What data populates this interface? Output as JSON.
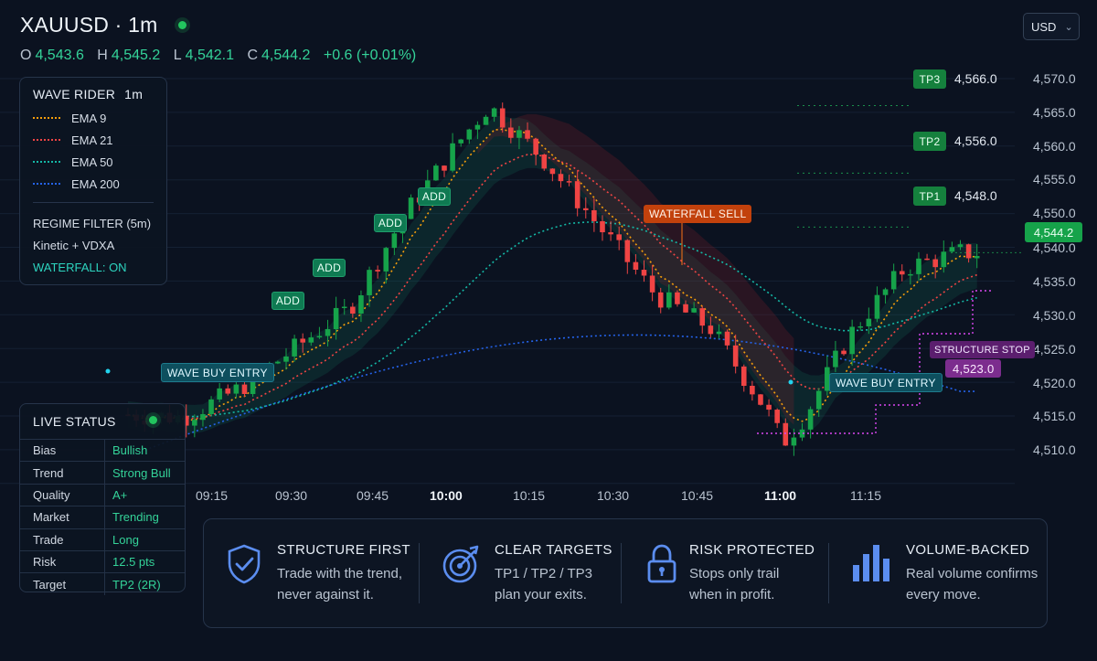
{
  "header": {
    "symbol": "XAUUSD · 1m",
    "ohlc": {
      "o_label": "O",
      "o": "4,543.6",
      "h_label": "H",
      "h": "4,545.2",
      "l_label": "L",
      "l": "4,542.1",
      "c_label": "C",
      "c": "4,544.2",
      "change": "+0.6 (+0.01%)"
    }
  },
  "currency": {
    "value": "USD"
  },
  "legend": {
    "title": "WAVE RIDER",
    "timeframe": "1m",
    "emas": [
      {
        "label": "EMA 9",
        "color": "#f59e0b"
      },
      {
        "label": "EMA 21",
        "color": "#ef4444"
      },
      {
        "label": "EMA 50",
        "color": "#14b8a6"
      },
      {
        "label": "EMA 200",
        "color": "#2563eb"
      }
    ],
    "regime_title": "REGIME FILTER (5m)",
    "regime_value": "Kinetic + VDXA",
    "waterfall": "WATERFALL: ON"
  },
  "live_status": {
    "title": "LIVE STATUS",
    "rows": [
      {
        "k": "Bias",
        "v": "Bullish"
      },
      {
        "k": "Trend",
        "v": "Strong Bull"
      },
      {
        "k": "Quality",
        "v": "A+"
      },
      {
        "k": "Market",
        "v": "Trending"
      },
      {
        "k": "Trade",
        "v": "Long"
      },
      {
        "k": "Risk",
        "v": "12.5 pts"
      },
      {
        "k": "Target",
        "v": "TP2 (2R)"
      }
    ]
  },
  "chart_data": {
    "type": "candlestick",
    "y_ticks": [
      "4,570.0",
      "4,565.0",
      "4,560.0",
      "4,555.0",
      "4,550.0",
      "4,545.0",
      "4,540.0",
      "4,535.0",
      "4,530.0",
      "4,525.0",
      "4,520.0",
      "4,515.0",
      "4,510.0"
    ],
    "x_ticks": [
      "09:15",
      "09:30",
      "09:45",
      "10:00",
      "10:15",
      "10:30",
      "10:45",
      "11:00",
      "11:15"
    ],
    "x_bold": [
      "10:00",
      "11:00"
    ],
    "last_price": "4,544.2",
    "path_times": [
      "09:00",
      "09:10",
      "09:20",
      "09:30",
      "09:40",
      "09:50",
      "10:00",
      "10:05",
      "10:15",
      "10:25",
      "10:35",
      "10:45",
      "10:55",
      "10:58",
      "11:02",
      "11:10",
      "11:20",
      "11:30"
    ],
    "path_prices": [
      4520.2,
      4519.8,
      4524.0,
      4530.0,
      4536.0,
      4550.0,
      4561.0,
      4566.0,
      4558.0,
      4548.0,
      4538.0,
      4533.0,
      4521.0,
      4516.0,
      4520.0,
      4532.0,
      4542.0,
      4544.2
    ],
    "signals": [
      {
        "label": "ADD",
        "time": "09:31",
        "price": 4535.0
      },
      {
        "label": "ADD",
        "time": "09:37",
        "price": 4540.0
      },
      {
        "label": "ADD",
        "time": "09:46",
        "price": 4545.0
      },
      {
        "label": "ADD",
        "time": "09:55",
        "price": 4552.0
      },
      {
        "label": "WAVE BUY ENTRY",
        "time": "09:13",
        "price": 4522.0
      },
      {
        "label": "WAVE BUY ENTRY",
        "time": "11:03",
        "price": 4521.0
      },
      {
        "label": "WATERFALL SELL",
        "time": "10:40",
        "price": 4541.0
      }
    ],
    "targets": [
      {
        "label": "TP3",
        "value": "4,566.0"
      },
      {
        "label": "TP2",
        "value": "4,556.0"
      },
      {
        "label": "TP1",
        "value": "4,548.0"
      }
    ],
    "stop": {
      "label": "STRUCTURE STOP",
      "value": "4,523.0"
    }
  },
  "features": [
    {
      "icon": "shield-check-icon",
      "title": "STRUCTURE FIRST",
      "desc1": "Trade with the trend,",
      "desc2": "never against it."
    },
    {
      "icon": "target-icon",
      "title": "CLEAR TARGETS",
      "desc1": "TP1 / TP2 / TP3",
      "desc2": "plan your exits."
    },
    {
      "icon": "lock-icon",
      "title": "RISK PROTECTED",
      "desc1": "Stops only trail",
      "desc2": "when in profit."
    },
    {
      "icon": "volume-bars-icon",
      "title": "VOLUME-BACKED",
      "desc1": "Real volume confirms",
      "desc2": "every move."
    }
  ]
}
